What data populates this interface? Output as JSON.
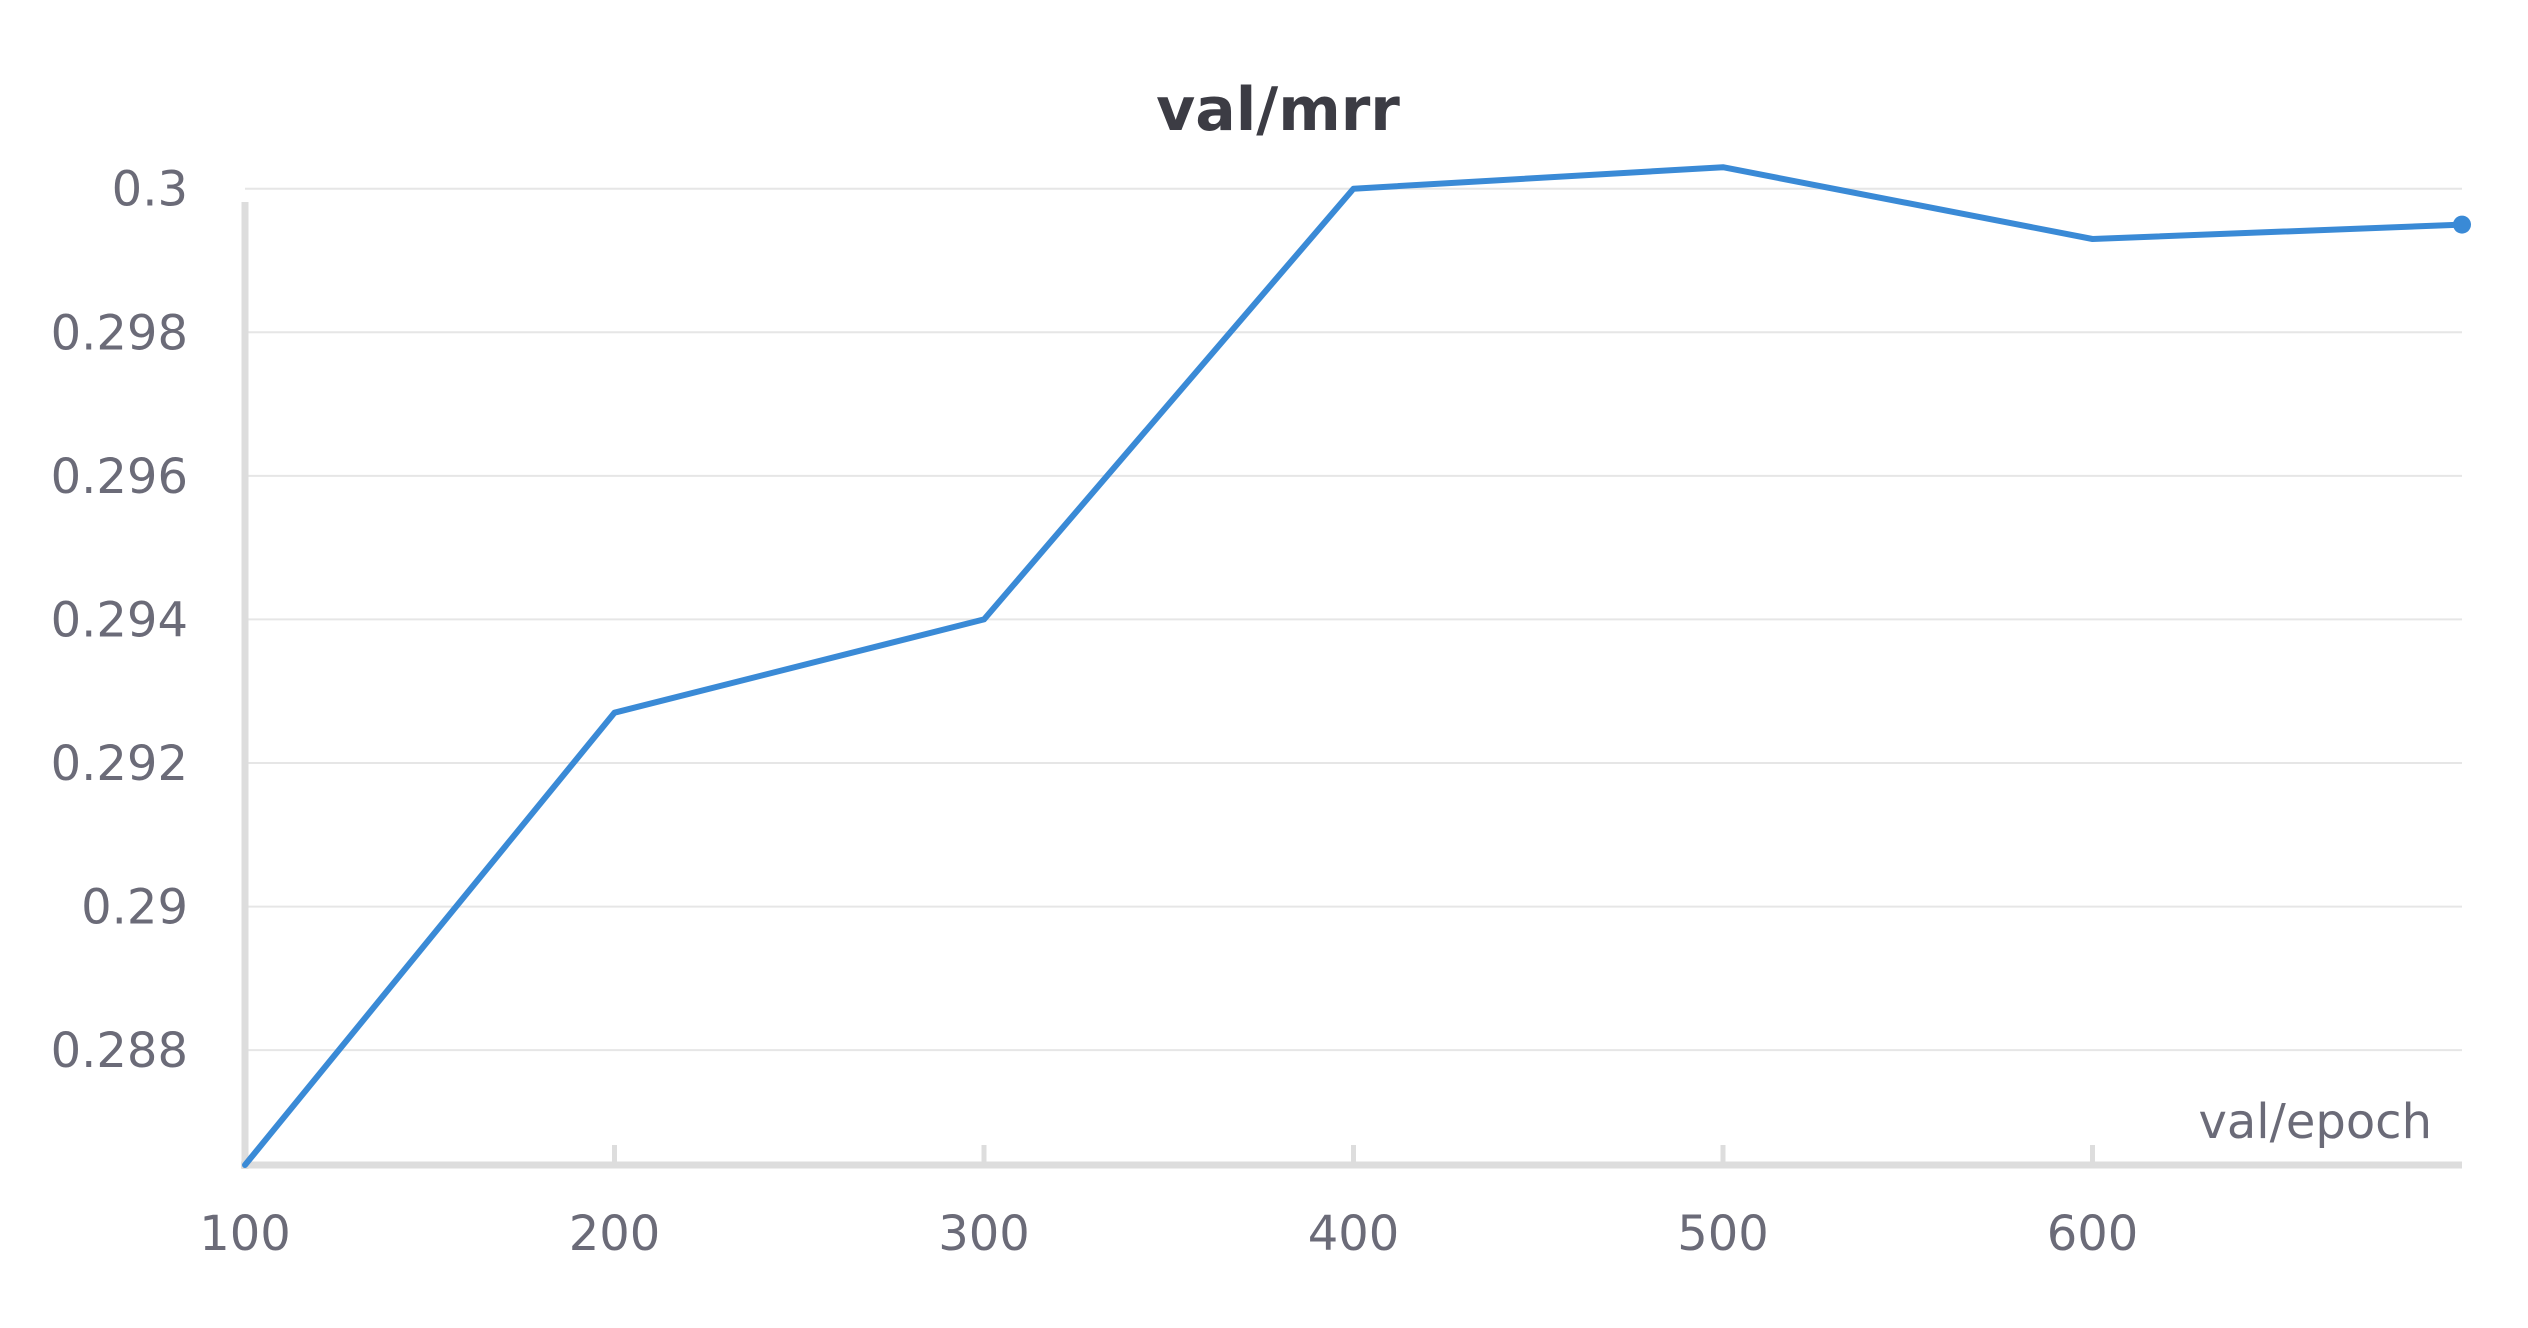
{
  "chart_data": {
    "type": "line",
    "title": "val/mrr",
    "xlabel": "val/epoch",
    "ylabel": "",
    "x": [
      100,
      200,
      300,
      400,
      500,
      600,
      700
    ],
    "series": [
      {
        "values": [
          0.2864,
          0.2927,
          0.294,
          0.3,
          0.3003,
          0.2993,
          0.2995
        ]
      }
    ],
    "xticks": [
      100,
      200,
      300,
      400,
      500,
      600
    ],
    "yticks": [
      0.288,
      0.29,
      0.292,
      0.294,
      0.296,
      0.298,
      0.3
    ],
    "ytick_labels": [
      "0.288",
      "0.29",
      "0.292",
      "0.294",
      "0.296",
      "0.298",
      "0.3"
    ],
    "xlim": [
      100,
      700
    ],
    "ylim": [
      0.2864,
      0.3004
    ],
    "grid": true,
    "legend": "none",
    "colors": {
      "series": "#3a8ad6"
    }
  }
}
